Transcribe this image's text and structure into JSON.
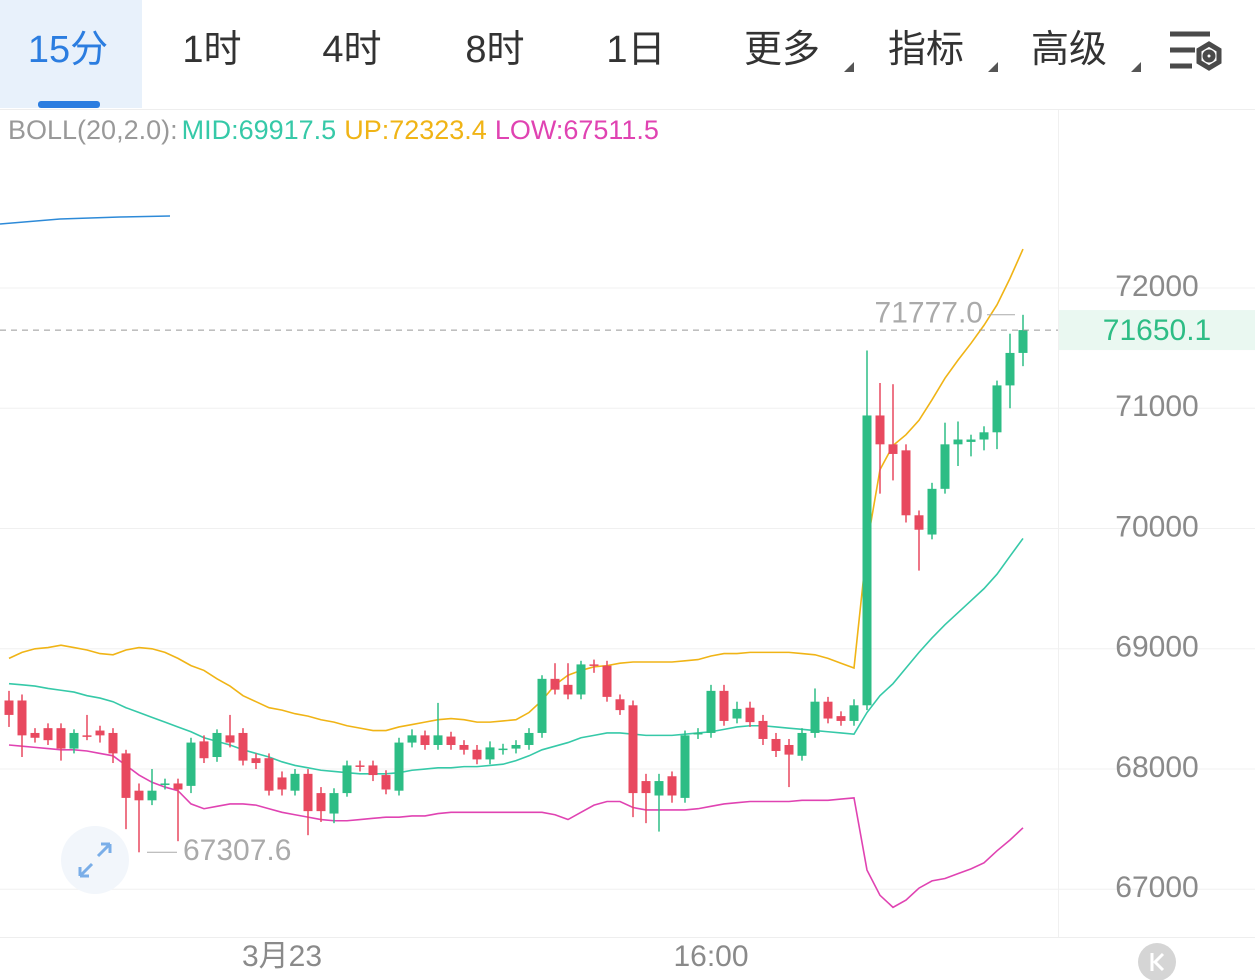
{
  "tabs": [
    "15分",
    "1时",
    "4时",
    "8时",
    "1日",
    "更多",
    "指标",
    "高级"
  ],
  "chart_data": {
    "type": "candlestick",
    "categories": [
      null,
      null,
      null,
      null,
      null,
      null,
      null,
      null,
      null,
      null,
      null,
      null,
      null,
      null,
      null,
      null,
      null,
      null,
      null,
      null,
      null,
      "3月23",
      null,
      null,
      null,
      null,
      null,
      null,
      null,
      null,
      null,
      null,
      null,
      null,
      null,
      null,
      null,
      null,
      null,
      null,
      null,
      null,
      null,
      null,
      null,
      null,
      null,
      null,
      null,
      null,
      null,
      null,
      null,
      null,
      "16:00",
      null,
      null,
      null,
      null,
      null,
      null,
      null,
      null,
      null,
      null,
      null,
      null,
      null,
      null,
      null,
      null,
      null,
      null,
      null,
      null,
      null,
      null,
      null,
      null
    ],
    "open": [
      68570,
      68570,
      68300,
      68340,
      68340,
      68170,
      68280,
      68320,
      68300,
      68130,
      67820,
      67740,
      67870,
      67880,
      67860,
      68230,
      68100,
      68280,
      68300,
      68090,
      68090,
      67930,
      67820,
      67960,
      67800,
      67630,
      67800,
      68030,
      68030,
      67950,
      67820,
      68220,
      68280,
      68200,
      68270,
      68200,
      68160,
      68080,
      68160,
      68170,
      68200,
      68300,
      68750,
      68700,
      68620,
      68870,
      68860,
      68580,
      68530,
      67900,
      67780,
      67940,
      67760,
      68290,
      68300,
      68650,
      68420,
      68510,
      68400,
      68250,
      68200,
      68110,
      68300,
      68560,
      68440,
      68400,
      68530,
      70940,
      70700,
      70650,
      70110,
      69950,
      70330,
      70700,
      70720,
      70740,
      70800,
      71190,
      71460
    ],
    "high": [
      68650,
      68620,
      68340,
      68380,
      68380,
      68330,
      68450,
      68360,
      68340,
      68160,
      67880,
      68000,
      67920,
      67920,
      68260,
      68280,
      68330,
      68450,
      68340,
      68130,
      68130,
      67980,
      68000,
      68000,
      67850,
      67840,
      68070,
      68070,
      68070,
      67990,
      68260,
      68330,
      68320,
      68550,
      68310,
      68240,
      68200,
      68230,
      68210,
      68240,
      68340,
      68780,
      68880,
      68880,
      68900,
      68910,
      68900,
      68620,
      68570,
      67960,
      67960,
      67980,
      68320,
      68340,
      68700,
      68700,
      68560,
      68560,
      68450,
      68300,
      68250,
      68340,
      68670,
      68600,
      68480,
      68580,
      71480,
      71210,
      71200,
      70700,
      70150,
      70380,
      70880,
      70890,
      70780,
      70850,
      71230,
      71620,
      71777
    ],
    "low": [
      68350,
      68100,
      68220,
      68200,
      68070,
      68130,
      68240,
      68220,
      68050,
      67500,
      67307.6,
      67700,
      67830,
      67400,
      67800,
      68050,
      68060,
      68180,
      68030,
      68000,
      67780,
      67780,
      67780,
      67450,
      67560,
      67550,
      67770,
      67980,
      67900,
      67790,
      67780,
      68180,
      68160,
      68160,
      68160,
      68120,
      68040,
      68040,
      68120,
      68130,
      68160,
      68260,
      68620,
      68580,
      68580,
      68800,
      68560,
      68450,
      67600,
      67550,
      67480,
      67720,
      67720,
      68250,
      68260,
      68360,
      68380,
      68350,
      68200,
      68100,
      67850,
      68070,
      68260,
      68380,
      68360,
      68360,
      68490,
      70290,
      70400,
      70050,
      69650,
      69910,
      70290,
      70520,
      70600,
      70650,
      70660,
      71000,
      71350
    ],
    "close": [
      68450,
      68280,
      68260,
      68240,
      68170,
      68300,
      68270,
      68280,
      68130,
      67760,
      67740,
      67820,
      67880,
      67830,
      68220,
      68090,
      68300,
      68220,
      68070,
      68050,
      67820,
      67830,
      67960,
      67650,
      67650,
      67800,
      68030,
      68020,
      67950,
      67830,
      68220,
      68280,
      68200,
      68280,
      68200,
      68160,
      68080,
      68180,
      68170,
      68200,
      68300,
      68750,
      68660,
      68620,
      68870,
      68860,
      68600,
      68490,
      67800,
      67800,
      67900,
      67780,
      68280,
      68300,
      68650,
      68400,
      68500,
      68390,
      68250,
      68150,
      68120,
      68300,
      68560,
      68420,
      68400,
      68530,
      70940,
      70700,
      70620,
      70110,
      69990,
      70330,
      70700,
      70740,
      70740,
      70800,
      71190,
      71460,
      71650.1
    ],
    "up_color": "#2dbd85",
    "down_color": "#e8495f",
    "ylim": [
      66620,
      73480
    ],
    "yticks": [
      67000,
      68000,
      69000,
      70000,
      71000,
      72000
    ],
    "grid": true,
    "overlays": {
      "name": "BOLL(20,2.0):",
      "series": [
        {
          "name": "MID:",
          "color": "#36c9a8",
          "values": [
            68710,
            68700,
            68690,
            68670,
            68655,
            68640,
            68610,
            68590,
            68560,
            68510,
            68470,
            68430,
            68390,
            68350,
            68310,
            68260,
            68230,
            68200,
            68160,
            68130,
            68100,
            68060,
            68030,
            68010,
            67990,
            67980,
            67970,
            67960,
            67960,
            67960,
            67970,
            67990,
            68000,
            68010,
            68010,
            68020,
            68020,
            68030,
            68040,
            68070,
            68110,
            68160,
            68190,
            68220,
            68260,
            68280,
            68300,
            68300,
            68290,
            68280,
            68280,
            68280,
            68290,
            68300,
            68310,
            68330,
            68350,
            68360,
            68360,
            68350,
            68340,
            68330,
            68320,
            68310,
            68300,
            68290,
            68470,
            68610,
            68710,
            68840,
            68970,
            69090,
            69200,
            69300,
            69400,
            69500,
            69620,
            69770,
            69917.5
          ]
        },
        {
          "name": "UP:",
          "color": "#f0b416",
          "values": [
            68920,
            68970,
            69000,
            69010,
            69030,
            69010,
            68990,
            68960,
            68950,
            68990,
            69010,
            69000,
            68970,
            68920,
            68860,
            68820,
            68750,
            68690,
            68610,
            68560,
            68510,
            68490,
            68460,
            68440,
            68410,
            68390,
            68360,
            68340,
            68320,
            68320,
            68350,
            68370,
            68390,
            68410,
            68420,
            68410,
            68390,
            68390,
            68400,
            68410,
            68470,
            68570,
            68700,
            68780,
            68820,
            68850,
            68860,
            68880,
            68890,
            68890,
            68890,
            68890,
            68900,
            68910,
            68940,
            68960,
            68960,
            68970,
            68970,
            68970,
            68970,
            68960,
            68950,
            68920,
            68880,
            68840,
            69860,
            70490,
            70690,
            70780,
            70900,
            71070,
            71250,
            71400,
            71540,
            71690,
            71860,
            72080,
            72323.4
          ]
        },
        {
          "name": "LOW:",
          "color": "#e043b2",
          "values": [
            68200,
            68190,
            68180,
            68170,
            68160,
            68160,
            68150,
            68130,
            68110,
            68030,
            67950,
            67890,
            67850,
            67820,
            67710,
            67670,
            67690,
            67710,
            67710,
            67700,
            67670,
            67640,
            67620,
            67600,
            67580,
            67570,
            67570,
            67580,
            67590,
            67600,
            67600,
            67610,
            67610,
            67630,
            67640,
            67640,
            67640,
            67640,
            67640,
            67640,
            67640,
            67640,
            67620,
            67580,
            67640,
            67700,
            67730,
            67730,
            67680,
            67660,
            67660,
            67660,
            67660,
            67670,
            67690,
            67710,
            67720,
            67730,
            67730,
            67730,
            67730,
            67740,
            67740,
            67740,
            67750,
            67760,
            67160,
            66950,
            66850,
            66910,
            67010,
            67070,
            67090,
            67130,
            67170,
            67220,
            67320,
            67410,
            67511.5
          ]
        }
      ]
    },
    "annotations": [
      {
        "value": 71777,
        "label": "71777.0"
      },
      67307.6
    ],
    "last_price": 71650.1
  }
}
